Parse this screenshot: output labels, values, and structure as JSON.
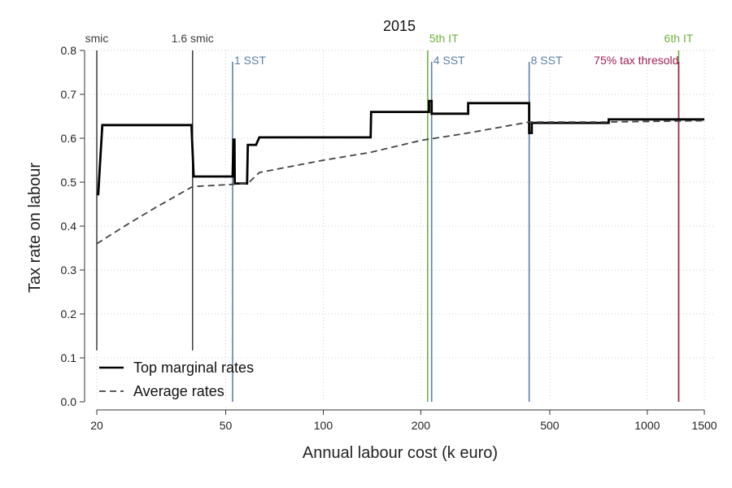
{
  "chart_data": {
    "type": "line",
    "title": "2015",
    "xlabel": "Annual labour cost (k euro)",
    "ylabel": "Tax rate on labour",
    "x_scale": "log",
    "xlim": [
      19.5,
      1500
    ],
    "ylim": [
      0,
      0.8
    ],
    "x_ticks": [
      20,
      50,
      100,
      200,
      500,
      1000,
      1500
    ],
    "y_ticks": [
      "0.0",
      "0.1",
      "0.2",
      "0.3",
      "0.4",
      "0.5",
      "0.6",
      "0.7",
      "0.8"
    ],
    "grid": true,
    "legend_position": "bottom-left",
    "colors": {
      "threshold_dark": "#3c3c3c",
      "sst": "#5a7fa6",
      "it": "#6db33f",
      "tax": "#a0204c"
    },
    "series": [
      {
        "name": "Top marginal rates",
        "style": "solid",
        "color": "#000000",
        "points": [
          [
            20.2,
            0.47
          ],
          [
            20.8,
            0.63
          ],
          [
            39.2,
            0.63
          ],
          [
            39.8,
            0.513
          ],
          [
            52.5,
            0.513
          ],
          [
            52.8,
            0.597
          ],
          [
            53.2,
            0.597
          ],
          [
            53.3,
            0.497
          ],
          [
            58.2,
            0.497
          ],
          [
            58.5,
            0.585
          ],
          [
            62.0,
            0.585
          ],
          [
            63.5,
            0.602
          ],
          [
            140.0,
            0.602
          ],
          [
            140.5,
            0.66
          ],
          [
            212.0,
            0.66
          ],
          [
            212.0,
            0.685
          ],
          [
            216.0,
            0.685
          ],
          [
            216.0,
            0.656
          ],
          [
            280.0,
            0.656
          ],
          [
            280.0,
            0.68
          ],
          [
            432.0,
            0.68
          ],
          [
            432.0,
            0.612
          ],
          [
            440.0,
            0.612
          ],
          [
            440.0,
            0.635
          ],
          [
            760.0,
            0.635
          ],
          [
            760.0,
            0.643
          ],
          [
            1500.0,
            0.643
          ]
        ]
      },
      {
        "name": "Average rates",
        "style": "dashed",
        "color": "#444444",
        "points": [
          [
            20,
            0.36
          ],
          [
            25,
            0.405
          ],
          [
            30,
            0.44
          ],
          [
            35,
            0.468
          ],
          [
            39.5,
            0.49
          ],
          [
            52.5,
            0.495
          ],
          [
            58.5,
            0.497
          ],
          [
            63.5,
            0.522
          ],
          [
            100,
            0.55
          ],
          [
            140,
            0.568
          ],
          [
            200,
            0.595
          ],
          [
            280,
            0.612
          ],
          [
            432,
            0.637
          ],
          [
            760,
            0.637
          ],
          [
            1500,
            0.64
          ]
        ]
      }
    ],
    "annotations": [
      {
        "label": "smic",
        "x": 20.0,
        "color_key": "threshold_dark",
        "label_row": "top",
        "label_anchor": "middle",
        "label_size": 14
      },
      {
        "label": "1.6 smic",
        "x": 39.5,
        "color_key": "threshold_dark",
        "label_row": "top",
        "label_anchor": "middle",
        "label_size": 14
      },
      {
        "label": "1 SST",
        "x": 52.5,
        "color_key": "sst",
        "label_row": "second",
        "label_anchor": "start",
        "label_size": 14
      },
      {
        "label": "5th IT",
        "x": 210.0,
        "color_key": "it",
        "label_row": "top",
        "label_anchor": "start",
        "label_size": 14
      },
      {
        "label": "4 SST",
        "x": 216.0,
        "color_key": "sst",
        "label_row": "second",
        "label_anchor": "start",
        "label_size": 11
      },
      {
        "label": "8 SST",
        "x": 432.0,
        "color_key": "sst",
        "label_row": "second",
        "label_anchor": "start",
        "label_size": 14
      },
      {
        "label": "6th IT",
        "x": 1250.0,
        "color_key": "it",
        "label_row": "top",
        "label_anchor": "middle",
        "label_size": 14
      },
      {
        "label": "75% tax thresold",
        "x": 1250.0,
        "color_key": "tax",
        "label_row": "second",
        "label_anchor": "end",
        "label_size": 14
      }
    ]
  }
}
